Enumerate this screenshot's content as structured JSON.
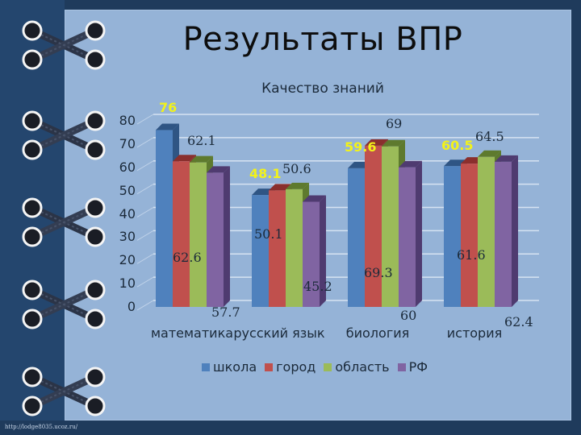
{
  "slide": {
    "title": "Результаты ВПР",
    "footer_url": "http://lodge8035.ucoz.ru/"
  },
  "colors": {
    "background": "#1f3b5c",
    "panel": "#95b3d7",
    "school": "#4f81bd",
    "city": "#c0504d",
    "region": "#9bbb59",
    "rf": "#8064a2",
    "highlight_label": "#f2f21a"
  },
  "chart_data": {
    "type": "bar",
    "title": "Качество знаний",
    "xlabel": "",
    "ylabel": "",
    "ylim": [
      0,
      80
    ],
    "yticks": [
      "0",
      "10",
      "20",
      "30",
      "40",
      "50",
      "60",
      "70",
      "80"
    ],
    "grid": true,
    "legend_position": "bottom",
    "categories": [
      "математика",
      "русский язык",
      "биология",
      "история"
    ],
    "series": [
      {
        "name": "школа",
        "values": [
          76,
          48.1,
          59.6,
          60.5
        ]
      },
      {
        "name": "город",
        "values": [
          62.6,
          50.1,
          69.3,
          61.6
        ]
      },
      {
        "name": "область",
        "values": [
          62.1,
          50.6,
          69,
          64.5
        ]
      },
      {
        "name": "РФ",
        "values": [
          57.7,
          45.2,
          60,
          62.4
        ]
      }
    ],
    "labels": {
      "math_school": "76",
      "math_city": "62.6",
      "math_region": "62.1",
      "math_rf": "57.7",
      "rus_school": "48.1",
      "rus_city": "50.1",
      "rus_region": "50.6",
      "rus_rf": "45.2",
      "bio_school": "59.6",
      "bio_city": "69.3",
      "bio_region": "69",
      "bio_rf": "60",
      "hist_school": "60.5",
      "hist_city": "61.6",
      "hist_region": "64.5",
      "hist_rf": "62.4"
    }
  }
}
